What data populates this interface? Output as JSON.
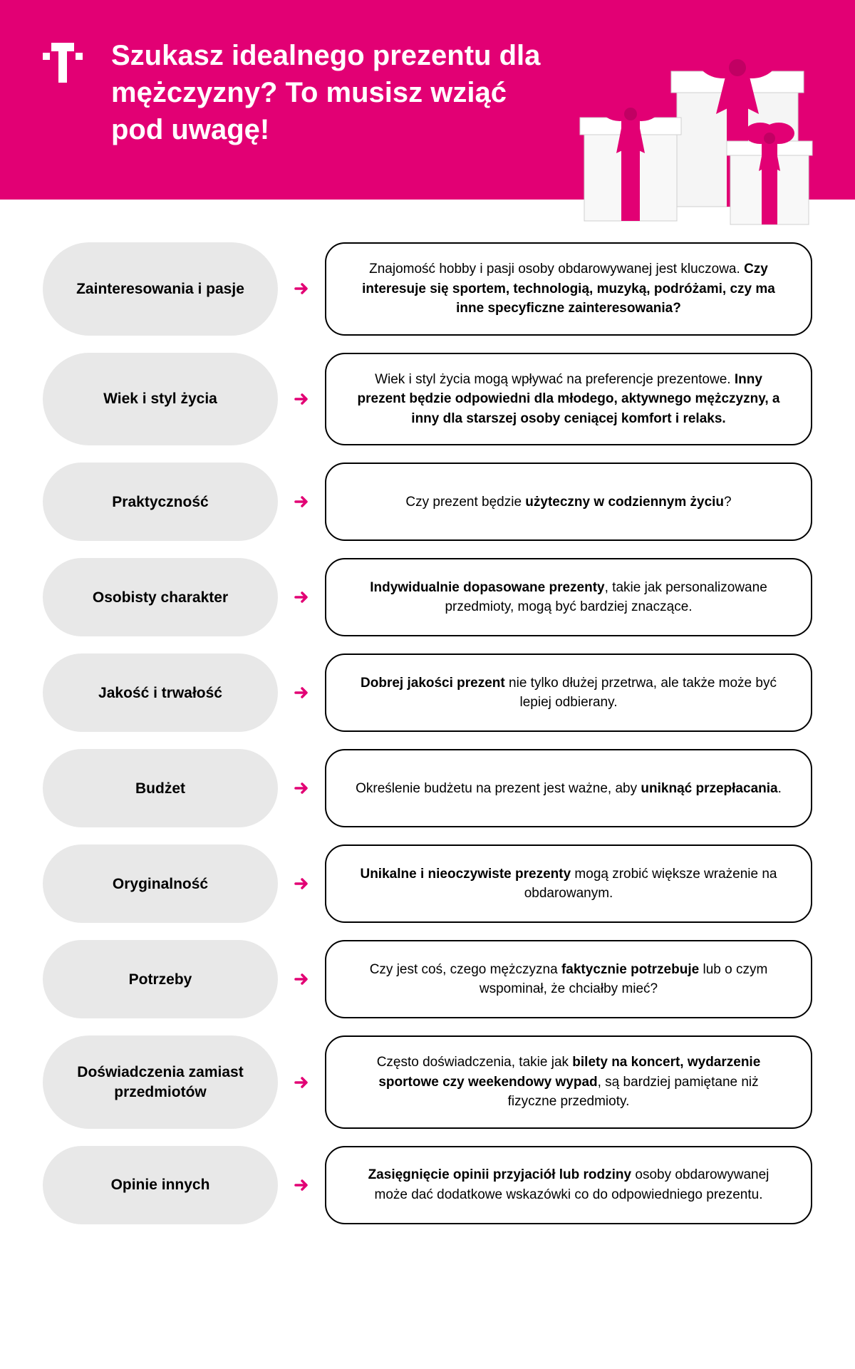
{
  "brand_color": "#e20074",
  "header": {
    "title": "Szukasz idealnego prezentu dla mężczyzny? To musisz wziąć pod uwagę!"
  },
  "rows": [
    {
      "label": "Zainteresowania i pasje",
      "desc_html": "Znajomość hobby i pasji osoby obdarowywanej jest kluczowa. <b>Czy interesuje się sportem, technologią, muzyką, podróżami, czy ma inne specyficzne zainteresowania?</b>"
    },
    {
      "label": "Wiek i styl życia",
      "desc_html": "Wiek i styl życia mogą wpływać na preferencje prezentowe. <b>Inny prezent będzie odpowiedni dla młodego, aktywnego mężczyzny, a inny dla starszej osoby ceniącej komfort i relaks.</b>"
    },
    {
      "label": "Praktyczność",
      "desc_html": "Czy prezent będzie <b>użyteczny w codziennym życiu</b>?"
    },
    {
      "label": "Osobisty charakter",
      "desc_html": "<b>Indywidualnie dopasowane prezenty</b>, takie jak personalizowane przedmioty, mogą być bardziej znaczące."
    },
    {
      "label": "Jakość i trwałość",
      "desc_html": "<b>Dobrej jakości prezent</b> nie tylko dłużej przetrwa, ale także może być lepiej odbierany."
    },
    {
      "label": "Budżet",
      "desc_html": "Określenie budżetu na prezent jest ważne, aby <b>uniknąć przepłacania</b>."
    },
    {
      "label": "Oryginalność",
      "desc_html": "<b>Unikalne i nieoczywiste prezenty</b> mogą zrobić większe wrażenie na obdarowanym."
    },
    {
      "label": "Potrzeby",
      "desc_html": "Czy jest coś, czego mężczyzna <b>faktycznie potrzebuje</b> lub o czym wspominał, że chciałby mieć?"
    },
    {
      "label": "Doświadczenia zamiast przedmiotów",
      "desc_html": "Często doświadczenia, takie jak <b>bilety na koncert, wydarzenie sportowe czy weekendowy wypad</b>, są bardziej pamiętane niż fizyczne przedmioty."
    },
    {
      "label": "Opinie innych",
      "desc_html": "<b>Zasięgnięcie opinii przyjaciół lub rodziny</b> osoby obdarowywanej może dać dodatkowe wskazówki co do odpowiedniego prezentu."
    }
  ]
}
